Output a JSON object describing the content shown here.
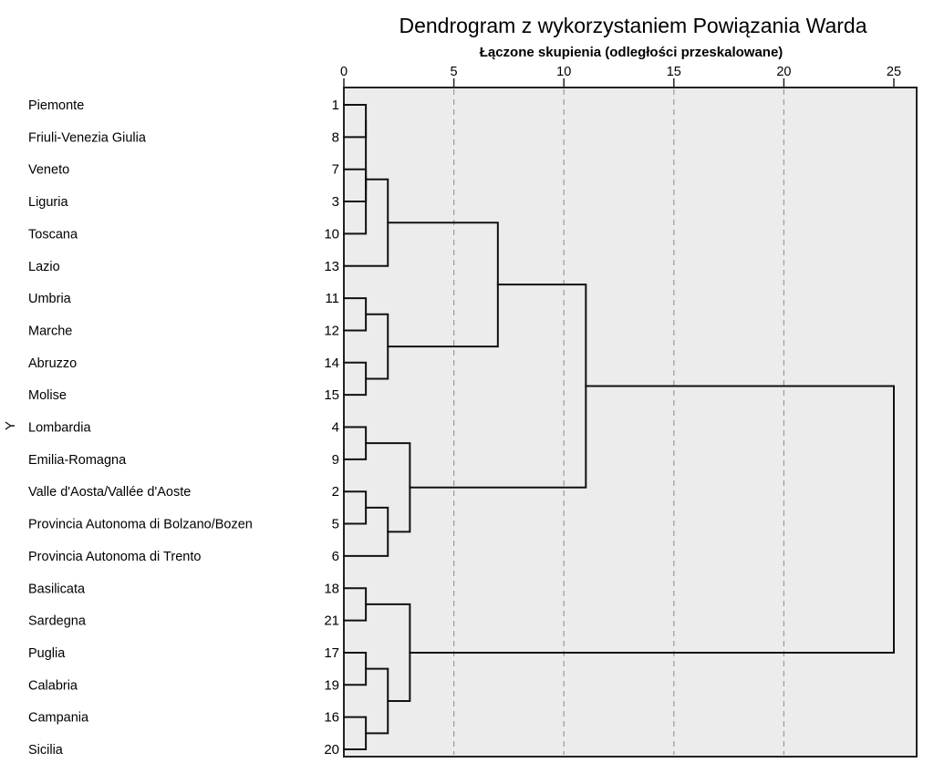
{
  "chart_data": {
    "type": "dendrogram",
    "title": "Dendrogram z wykorzystaniem Powiązania Warda",
    "xlabel": "Łączone skupienia (odległości przeskalowane)",
    "ylabel": "Y",
    "xlim": [
      0,
      25
    ],
    "xticks": [
      "0",
      "5",
      "10",
      "15",
      "20",
      "25"
    ],
    "grid": true,
    "leaves": [
      {
        "label": "Piemonte",
        "case": "1"
      },
      {
        "label": "Friuli-Venezia Giulia",
        "case": "8"
      },
      {
        "label": "Veneto",
        "case": "7"
      },
      {
        "label": "Liguria",
        "case": "3"
      },
      {
        "label": "Toscana",
        "case": "10"
      },
      {
        "label": "Lazio",
        "case": "13"
      },
      {
        "label": "Umbria",
        "case": "11"
      },
      {
        "label": "Marche",
        "case": "12"
      },
      {
        "label": "Abruzzo",
        "case": "14"
      },
      {
        "label": "Molise",
        "case": "15"
      },
      {
        "label": "Lombardia",
        "case": "4"
      },
      {
        "label": "Emilia-Romagna",
        "case": "9"
      },
      {
        "label": "Valle d'Aosta/Vallée d'Aoste",
        "case": "2"
      },
      {
        "label": "Provincia Autonoma di Bolzano/Bozen",
        "case": "5"
      },
      {
        "label": "Provincia Autonoma di Trento",
        "case": "6"
      },
      {
        "label": "Basilicata",
        "case": "18"
      },
      {
        "label": "Sardegna",
        "case": "21"
      },
      {
        "label": "Puglia",
        "case": "17"
      },
      {
        "label": "Calabria",
        "case": "19"
      },
      {
        "label": "Campania",
        "case": "16"
      },
      {
        "label": "Sicilia",
        "case": "20"
      }
    ],
    "merges": [
      {
        "children": [
          0,
          1
        ],
        "distance": 1
      },
      {
        "children": [
          21,
          4
        ],
        "distance": 1
      },
      {
        "children": [
          22,
          3
        ],
        "distance": 1
      },
      {
        "children": [
          23,
          2
        ],
        "distance": 1
      },
      {
        "children": [
          24,
          5
        ],
        "distance": 2
      },
      {
        "children": [
          6,
          7
        ],
        "distance": 1
      },
      {
        "children": [
          8,
          9
        ],
        "distance": 1
      },
      {
        "children": [
          26,
          27
        ],
        "distance": 2
      },
      {
        "children": [
          25,
          28
        ],
        "distance": 7
      },
      {
        "children": [
          10,
          11
        ],
        "distance": 1
      },
      {
        "children": [
          12,
          13
        ],
        "distance": 1
      },
      {
        "children": [
          31,
          14
        ],
        "distance": 2
      },
      {
        "children": [
          30,
          32
        ],
        "distance": 3
      },
      {
        "children": [
          29,
          33
        ],
        "distance": 11
      },
      {
        "children": [
          15,
          16
        ],
        "distance": 1
      },
      {
        "children": [
          17,
          18
        ],
        "distance": 1
      },
      {
        "children": [
          19,
          20
        ],
        "distance": 1
      },
      {
        "children": [
          36,
          37
        ],
        "distance": 2
      },
      {
        "children": [
          35,
          38
        ],
        "distance": 3
      },
      {
        "children": [
          34,
          39
        ],
        "distance": 25
      }
    ]
  }
}
